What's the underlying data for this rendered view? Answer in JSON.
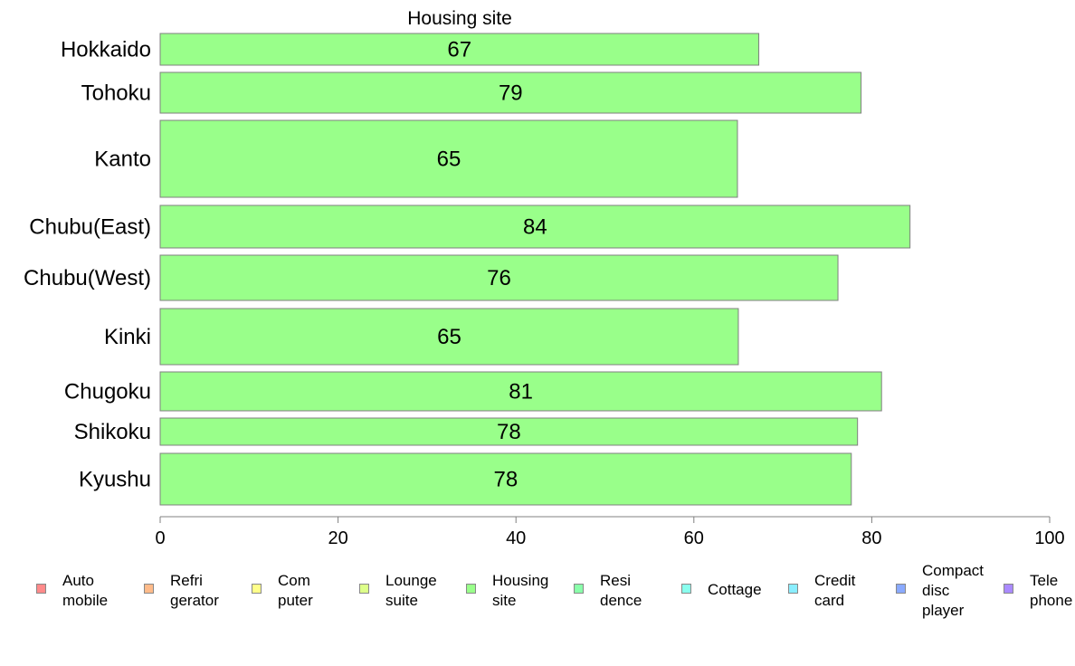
{
  "chart_data": {
    "type": "bar",
    "orientation": "horizontal",
    "title": "Housing site",
    "categories": [
      "Hokkaido",
      "Tohoku",
      "Kanto",
      "Chubu(East)",
      "Chubu(West)",
      "Kinki",
      "Chugoku",
      "Shikoku",
      "Kyushu"
    ],
    "values": [
      67,
      79,
      65,
      84,
      76,
      65,
      81,
      78,
      78
    ],
    "bar_widths": [
      67.3,
      78.8,
      64.9,
      84.3,
      76.2,
      65.0,
      81.1,
      78.4,
      77.7
    ],
    "value_labels": [
      "67",
      "79",
      "65",
      "84",
      "76",
      "65",
      "81",
      "78",
      "78"
    ],
    "bar_color": "#99ff8a",
    "xlim": [
      0,
      100
    ],
    "x_ticks": [
      "0",
      "20",
      "40",
      "60",
      "80",
      "100"
    ],
    "xlabel": "",
    "ylabel": "",
    "grid": false,
    "legend_position": "bottom",
    "legend": [
      {
        "lines": [
          "Auto",
          "mobile"
        ],
        "color": "#ff8a8a"
      },
      {
        "lines": [
          "Refri",
          "gerator"
        ],
        "color": "#ffbb8a"
      },
      {
        "lines": [
          "Com",
          "puter"
        ],
        "color": "#ffff8a"
      },
      {
        "lines": [
          "Lounge",
          "suite"
        ],
        "color": "#ddff8a"
      },
      {
        "lines": [
          "Housing",
          "site"
        ],
        "color": "#99ff8a"
      },
      {
        "lines": [
          "Resi",
          "dence"
        ],
        "color": "#8affaa"
      },
      {
        "lines": [
          "Cottage"
        ],
        "color": "#8affee"
      },
      {
        "lines": [
          "Credit",
          "card"
        ],
        "color": "#8aeeff"
      },
      {
        "lines": [
          "Compact",
          "disc",
          "player"
        ],
        "color": "#8aaaff"
      },
      {
        "lines": [
          "Tele",
          "phone"
        ],
        "color": "#aa8aff"
      }
    ]
  }
}
